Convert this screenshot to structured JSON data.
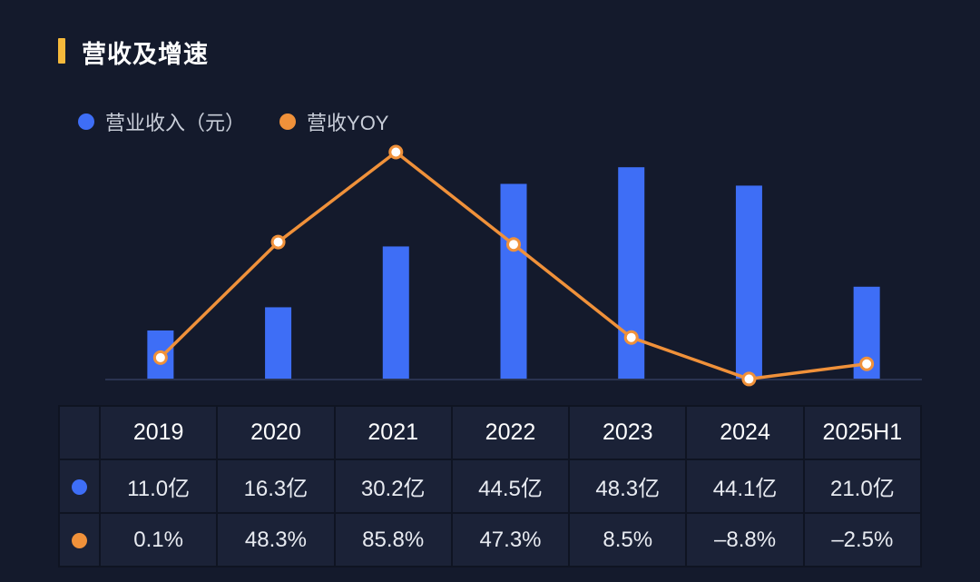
{
  "title": "营收及增速",
  "colors": {
    "background": "#141a2c",
    "accent_bar": "#f6b93b",
    "bar_blue": "#3e6ef6",
    "line_orange": "#f0913a"
  },
  "legend": {
    "revenue_label": "营业收入（元）",
    "yoy_label": "营收YOY"
  },
  "chart_data": {
    "type": "bar",
    "title": "营收及增速",
    "categories": [
      "2019",
      "2020",
      "2021",
      "2022",
      "2023",
      "2024",
      "2025H1"
    ],
    "series": [
      {
        "name": "营业收入（元）",
        "type": "bar",
        "unit": "亿",
        "values": [
          11.0,
          16.3,
          30.2,
          44.5,
          48.3,
          44.1,
          21.0
        ],
        "ylim": [
          0,
          50
        ]
      },
      {
        "name": "营收YOY",
        "type": "line",
        "unit": "%",
        "values": [
          0.1,
          48.3,
          85.8,
          47.3,
          8.5,
          -8.8,
          -2.5
        ],
        "ylim": [
          -20,
          100
        ]
      }
    ],
    "xlabel": "",
    "ylabel": "",
    "grid": false,
    "legend_position": "top-left"
  },
  "table": {
    "years": [
      "2019",
      "2020",
      "2021",
      "2022",
      "2023",
      "2024",
      "2025H1"
    ],
    "revenue": [
      "11.0亿",
      "16.3亿",
      "30.2亿",
      "44.5亿",
      "48.3亿",
      "44.1亿",
      "21.0亿"
    ],
    "yoy": [
      "0.1%",
      "48.3%",
      "85.8%",
      "47.3%",
      "8.5%",
      "–8.8%",
      "–2.5%"
    ]
  }
}
